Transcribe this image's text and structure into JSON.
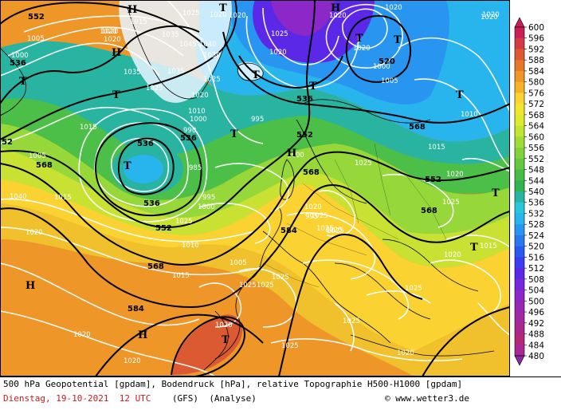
{
  "legend": {
    "values": [
      "600",
      "596",
      "592",
      "588",
      "584",
      "580",
      "576",
      "572",
      "568",
      "564",
      "560",
      "556",
      "552",
      "548",
      "544",
      "540",
      "536",
      "532",
      "528",
      "524",
      "520",
      "516",
      "512",
      "508",
      "504",
      "500",
      "496",
      "492",
      "488",
      "484",
      "480"
    ],
    "colors": [
      "#c81e5a",
      "#d23c46",
      "#dc5a32",
      "#e6782a",
      "#ee9628",
      "#f5b428",
      "#fad232",
      "#f0e62d",
      "#dceb2d",
      "#bee632",
      "#a0dc37",
      "#82d23c",
      "#64c841",
      "#46be46",
      "#32b450",
      "#28b4a0",
      "#28c8dc",
      "#28b4ec",
      "#2896f0",
      "#2878f0",
      "#285af0",
      "#3c3cf0",
      "#5a28e6",
      "#7828dc",
      "#8c28c8",
      "#9628b4",
      "#a028a0",
      "#aa288c",
      "#b42878",
      "#aa2896",
      "#8c28a0"
    ]
  },
  "map": {
    "geopotential_labels": [
      "552",
      "536",
      "52",
      "568",
      "536",
      "536",
      "536",
      "552",
      "520",
      "536",
      "552",
      "568",
      "552",
      "568",
      "584",
      "568",
      "584",
      "568"
    ],
    "pressure_labels": [
      "1015",
      "1025",
      "1005",
      "1020",
      "1020",
      "1035",
      "1045",
      "1040",
      "1035",
      "1030",
      "1025",
      "1020",
      "1000",
      "1035",
      "1025",
      "1025",
      "1020",
      "1000",
      "1005",
      "1010",
      "1000",
      "1015",
      "1020",
      "990",
      "995",
      "985",
      "995",
      "1000",
      "1005",
      "1010",
      "1015",
      "1020",
      "1015",
      "1025",
      "1040",
      "1005",
      "1000",
      "1025",
      "1015",
      "1010",
      "1025",
      "1020",
      "1020",
      "1025",
      "1025",
      "1025",
      "1020",
      "1025",
      "1020",
      "1025",
      "1020",
      "1025",
      "1015",
      "1025",
      "1020",
      "1020",
      "1025",
      "1020",
      "1020",
      "1020",
      "1020",
      "1020",
      "1020",
      "1020",
      "995",
      "1025",
      "1025"
    ],
    "high_symbol": "H",
    "low_symbol": "T"
  },
  "footer": {
    "description": "500 hPa Geopotential [gpdam], Bodendruck [hPa], relative Topographie H500-H1000 [gpdam]",
    "date": "Dienstag, 19-10-2021  12 UTC",
    "model": "(GFS)",
    "mode": "(Analyse)",
    "copyright": "© www.wetter3.de"
  }
}
